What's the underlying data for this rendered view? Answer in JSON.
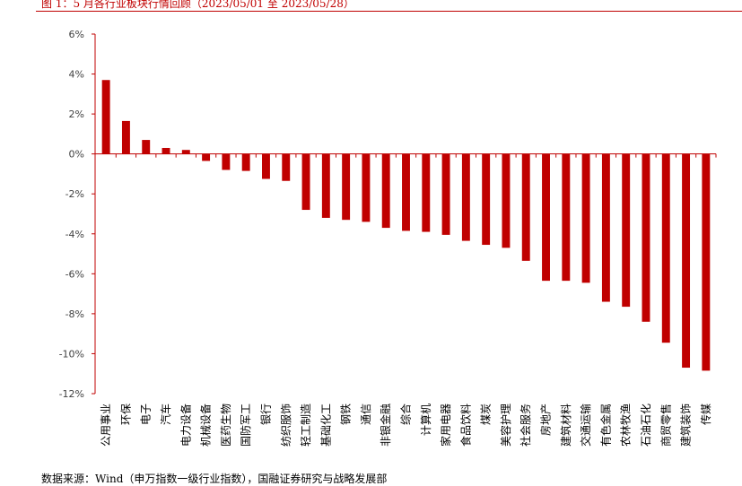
{
  "figure": {
    "caption": "图 1：5 月各行业板块行情回顾（2023/05/01 至 2023/05/28）",
    "source": "数据来源：Wind（申万指数一级行业指数），国融证券研究与战略发展部"
  },
  "chart_data": {
    "type": "bar",
    "title": "",
    "xlabel": "",
    "ylabel": "",
    "ylim": [
      -12,
      6
    ],
    "yticks": [
      "6%",
      "4%",
      "2%",
      "0%",
      "-2%",
      "-4%",
      "-6%",
      "-8%",
      "-10%",
      "-12%"
    ],
    "grid": false,
    "bar_color": "#c00000",
    "categories": [
      "公用事业",
      "环保",
      "电子",
      "汽车",
      "电力设备",
      "机械设备",
      "医药生物",
      "国防军工",
      "银行",
      "纺织服饰",
      "轻工制造",
      "基础化工",
      "钢铁",
      "通信",
      "非银金融",
      "综合",
      "计算机",
      "家用电器",
      "食品饮料",
      "煤炭",
      "美容护理",
      "社会服务",
      "房地产",
      "建筑材料",
      "交通运输",
      "有色金属",
      "农林牧渔",
      "石油石化",
      "商贸零售",
      "建筑装饰",
      "传媒"
    ],
    "values": [
      3.7,
      1.65,
      0.7,
      0.3,
      0.2,
      -0.35,
      -0.8,
      -0.85,
      -1.25,
      -1.35,
      -2.8,
      -3.2,
      -3.3,
      -3.4,
      -3.7,
      -3.85,
      -3.9,
      -4.05,
      -4.35,
      -4.55,
      -4.7,
      -5.35,
      -6.35,
      -6.35,
      -6.45,
      -7.4,
      -7.65,
      -8.4,
      -9.45,
      -10.7,
      -10.85
    ]
  }
}
